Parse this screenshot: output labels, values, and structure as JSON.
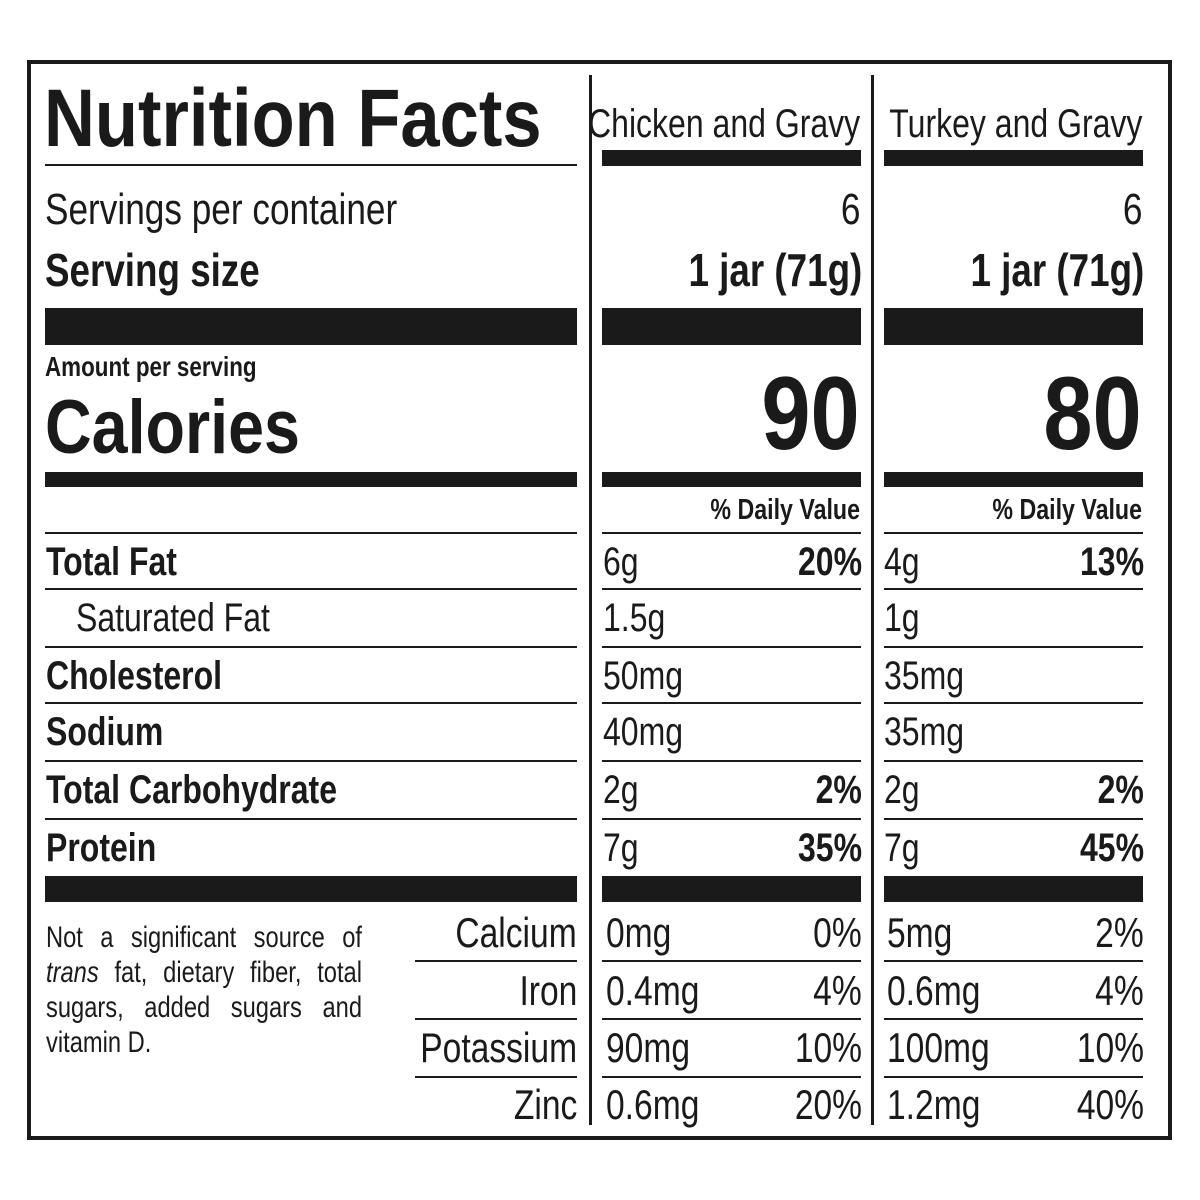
{
  "title": "Nutrition Facts",
  "products": [
    {
      "name": "Chicken and Gravy",
      "servings": "6",
      "serving_size": "1 jar (71g)",
      "calories": "90"
    },
    {
      "name": "Turkey and Gravy",
      "servings": "6",
      "serving_size": "1 jar (71g)",
      "calories": "80"
    }
  ],
  "labels": {
    "servings_per_container": "Servings per container",
    "serving_size": "Serving size",
    "amount_per_serving": "Amount per serving",
    "calories": "Calories",
    "daily_value": "% Daily Value"
  },
  "nutrients": [
    {
      "label": "Total Fat",
      "bold": true,
      "indent": false,
      "values": [
        {
          "amount": "6g",
          "dv": "20%"
        },
        {
          "amount": "4g",
          "dv": "13%"
        }
      ]
    },
    {
      "label": "Saturated Fat",
      "bold": false,
      "indent": true,
      "values": [
        {
          "amount": "1.5g",
          "dv": ""
        },
        {
          "amount": "1g",
          "dv": ""
        }
      ]
    },
    {
      "label": "Cholesterol",
      "bold": true,
      "indent": false,
      "values": [
        {
          "amount": "50mg",
          "dv": ""
        },
        {
          "amount": "35mg",
          "dv": ""
        }
      ]
    },
    {
      "label": "Sodium",
      "bold": true,
      "indent": false,
      "values": [
        {
          "amount": "40mg",
          "dv": ""
        },
        {
          "amount": "35mg",
          "dv": ""
        }
      ]
    },
    {
      "label": "Total Carbohydrate",
      "bold": true,
      "indent": false,
      "values": [
        {
          "amount": "2g",
          "dv": "2%"
        },
        {
          "amount": "2g",
          "dv": "2%"
        }
      ]
    },
    {
      "label": "Protein",
      "bold": true,
      "indent": false,
      "values": [
        {
          "amount": "7g",
          "dv": "35%"
        },
        {
          "amount": "7g",
          "dv": "45%"
        }
      ]
    }
  ],
  "minerals": [
    {
      "label": "Calcium",
      "values": [
        {
          "amount": "0mg",
          "dv": "0%"
        },
        {
          "amount": "5mg",
          "dv": "2%"
        }
      ]
    },
    {
      "label": "Iron",
      "values": [
        {
          "amount": "0.4mg",
          "dv": "4%"
        },
        {
          "amount": "0.6mg",
          "dv": "4%"
        }
      ]
    },
    {
      "label": "Potassium",
      "values": [
        {
          "amount": "90mg",
          "dv": "10%"
        },
        {
          "amount": "100mg",
          "dv": "10%"
        }
      ]
    },
    {
      "label": "Zinc",
      "values": [
        {
          "amount": "0.6mg",
          "dv": "20%"
        },
        {
          "amount": "1.2mg",
          "dv": "40%"
        }
      ]
    }
  ],
  "footnote": {
    "italic": "trans",
    "pre": "Not a significant source of ",
    "post": " fat, dietary fiber, total sugars, added sugars and vitamin D."
  }
}
